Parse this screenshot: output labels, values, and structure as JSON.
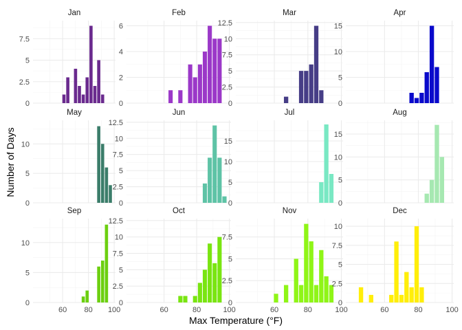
{
  "chart_data": {
    "type": "bar",
    "xlabel": "Max Temperature (°F)",
    "ylabel": "Number of Days",
    "xlim": [
      37,
      101
    ],
    "x_ticks": [
      60,
      80,
      100
    ],
    "bin_width": 3,
    "grid": true,
    "panels": [
      {
        "title": "Jan",
        "color": "#6a2a8e",
        "ylim": [
          0,
          9.6
        ],
        "y_ticks": [
          0,
          2.5,
          5,
          7.5
        ],
        "bins": [
          {
            "x": 61,
            "y": 1
          },
          {
            "x": 64,
            "y": 3
          },
          {
            "x": 70,
            "y": 4
          },
          {
            "x": 73,
            "y": 2
          },
          {
            "x": 76,
            "y": 1
          },
          {
            "x": 79,
            "y": 3
          },
          {
            "x": 82,
            "y": 9
          },
          {
            "x": 85,
            "y": 2
          },
          {
            "x": 88,
            "y": 5
          },
          {
            "x": 91,
            "y": 1
          }
        ]
      },
      {
        "title": "Feb",
        "color": "#9b38c8",
        "ylim": [
          0,
          6.4
        ],
        "y_ticks": [
          0,
          2,
          4,
          6
        ],
        "bins": [
          {
            "x": 64,
            "y": 1
          },
          {
            "x": 70,
            "y": 1
          },
          {
            "x": 76,
            "y": 3
          },
          {
            "x": 79,
            "y": 2
          },
          {
            "x": 82,
            "y": 3
          },
          {
            "x": 85,
            "y": 4
          },
          {
            "x": 88,
            "y": 6
          },
          {
            "x": 91,
            "y": 5
          },
          {
            "x": 94,
            "y": 5
          }
        ]
      },
      {
        "title": "Mar",
        "color": "#463d86",
        "ylim": [
          0,
          12.8
        ],
        "y_ticks": [
          0,
          2.5,
          5,
          7.5,
          10,
          12.5
        ],
        "bins": [
          {
            "x": 67,
            "y": 1
          },
          {
            "x": 76,
            "y": 5
          },
          {
            "x": 79,
            "y": 5
          },
          {
            "x": 82,
            "y": 6
          },
          {
            "x": 85,
            "y": 12
          },
          {
            "x": 88,
            "y": 2
          }
        ]
      },
      {
        "title": "Apr",
        "color": "#0a0acb",
        "ylim": [
          0,
          16
        ],
        "y_ticks": [
          0,
          5,
          10,
          15
        ],
        "bins": [
          {
            "x": 76,
            "y": 2
          },
          {
            "x": 79,
            "y": 1
          },
          {
            "x": 82,
            "y": 2
          },
          {
            "x": 85,
            "y": 6
          },
          {
            "x": 88,
            "y": 15
          },
          {
            "x": 91,
            "y": 7
          }
        ]
      },
      {
        "title": "May",
        "color": "#3b7d6a",
        "ylim": [
          0,
          14
        ],
        "y_ticks": [
          0,
          5,
          10
        ],
        "bins": [
          {
            "x": 88,
            "y": 13
          },
          {
            "x": 91,
            "y": 10
          },
          {
            "x": 94,
            "y": 6
          },
          {
            "x": 97,
            "y": 3
          }
        ]
      },
      {
        "title": "Jun",
        "color": "#5ec3a6",
        "ylim": [
          0,
          12.8
        ],
        "y_ticks": [
          0,
          2.5,
          5,
          7.5,
          10,
          12.5
        ],
        "bins": [
          {
            "x": 85,
            "y": 3
          },
          {
            "x": 88,
            "y": 7
          },
          {
            "x": 91,
            "y": 12
          },
          {
            "x": 94,
            "y": 7
          },
          {
            "x": 97,
            "y": 1
          }
        ]
      },
      {
        "title": "Jul",
        "color": "#79e8c3",
        "ylim": [
          0,
          20
        ],
        "y_ticks": [
          0,
          5,
          10,
          15
        ],
        "bins": [
          {
            "x": 88,
            "y": 5
          },
          {
            "x": 91,
            "y": 19
          },
          {
            "x": 94,
            "y": 7
          }
        ]
      },
      {
        "title": "Aug",
        "color": "#a6e8b1",
        "ylim": [
          0,
          18
        ],
        "y_ticks": [
          0,
          5,
          10,
          15
        ],
        "bins": [
          {
            "x": 85,
            "y": 2
          },
          {
            "x": 88,
            "y": 5
          },
          {
            "x": 91,
            "y": 17
          },
          {
            "x": 94,
            "y": 10
          }
        ]
      },
      {
        "title": "Sep",
        "color": "#6ccf10",
        "ylim": [
          0,
          14
        ],
        "y_ticks": [
          0,
          5,
          10
        ],
        "bins": [
          {
            "x": 76,
            "y": 1
          },
          {
            "x": 79,
            "y": 2
          },
          {
            "x": 88,
            "y": 6
          },
          {
            "x": 91,
            "y": 7
          },
          {
            "x": 94,
            "y": 13
          }
        ]
      },
      {
        "title": "Oct",
        "color": "#79e511",
        "ylim": [
          0,
          12.8
        ],
        "y_ticks": [
          0,
          2.5,
          5,
          7.5,
          10,
          12.5
        ],
        "bins": [
          {
            "x": 70,
            "y": 1
          },
          {
            "x": 73,
            "y": 1
          },
          {
            "x": 79,
            "y": 1
          },
          {
            "x": 82,
            "y": 3
          },
          {
            "x": 85,
            "y": 5
          },
          {
            "x": 88,
            "y": 9
          },
          {
            "x": 91,
            "y": 6
          },
          {
            "x": 94,
            "y": 10
          }
        ]
      },
      {
        "title": "Nov",
        "color": "#8ff517",
        "ylim": [
          0,
          9.6
        ],
        "y_ticks": [
          0,
          2.5,
          5,
          7.5
        ],
        "bins": [
          {
            "x": 61,
            "y": 1
          },
          {
            "x": 67,
            "y": 2
          },
          {
            "x": 73,
            "y": 5
          },
          {
            "x": 76,
            "y": 2
          },
          {
            "x": 79,
            "y": 9
          },
          {
            "x": 82,
            "y": 7
          },
          {
            "x": 85,
            "y": 2
          },
          {
            "x": 88,
            "y": 6
          },
          {
            "x": 91,
            "y": 3
          },
          {
            "x": 94,
            "y": 2
          }
        ]
      },
      {
        "title": "Dec",
        "color": "#ffee0a",
        "ylim": [
          0,
          11
        ],
        "y_ticks": [
          0,
          2.5,
          5,
          7.5,
          10
        ],
        "bins": [
          {
            "x": 46,
            "y": 2
          },
          {
            "x": 52,
            "y": 1
          },
          {
            "x": 64,
            "y": 1
          },
          {
            "x": 67,
            "y": 8
          },
          {
            "x": 70,
            "y": 1
          },
          {
            "x": 73,
            "y": 4
          },
          {
            "x": 76,
            "y": 2
          },
          {
            "x": 79,
            "y": 10
          },
          {
            "x": 82,
            "y": 2
          }
        ]
      }
    ]
  }
}
